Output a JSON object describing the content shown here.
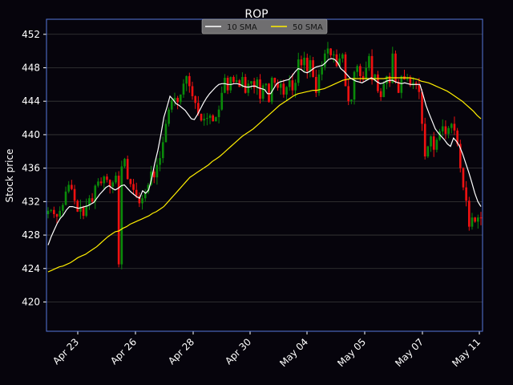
{
  "chart_data": {
    "type": "candlestick",
    "title": "ROP",
    "ylabel": "Stock price",
    "xlabel": "",
    "ylim": [
      416.5,
      453.8
    ],
    "y_ticks": [
      420,
      424,
      428,
      432,
      436,
      440,
      444,
      448,
      452
    ],
    "x_tick_labels": [
      "Apr 23",
      "Apr 26",
      "Apr 28",
      "Apr 30",
      "May 04",
      "May 05",
      "May 07",
      "May 11"
    ],
    "grid": true,
    "legend_position": "top-center",
    "colors": {
      "background": "#06040c",
      "axes_border": "#5577dd",
      "grid": "#3a3a3a",
      "up": "#0a8a0a",
      "down": "#ee1111",
      "sma10": "#ffffff",
      "sma50": "#ffee00",
      "legend_bg": "#8a8a8a"
    },
    "legend": [
      {
        "label": "10 SMA",
        "color": "#ffffff"
      },
      {
        "label": "50 SMA",
        "color": "#ffee00"
      }
    ],
    "close": [
      430.9,
      431.0,
      430.5,
      430.2,
      430.9,
      431.6,
      433.2,
      434.0,
      433.5,
      432.1,
      430.8,
      431.4,
      430.3,
      431.5,
      432.4,
      432.0,
      433.9,
      434.4,
      434.2,
      435.0,
      434.6,
      433.8,
      434.3,
      435.1,
      424.5,
      436.2,
      437.1,
      434.7,
      434.1,
      433.4,
      432.7,
      431.8,
      432.4,
      433.1,
      434.0,
      435.6,
      434.9,
      436.4,
      437.2,
      439.1,
      441.3,
      443.0,
      444.1,
      444.4,
      443.9,
      444.8,
      446.1,
      447.0,
      445.8,
      444.6,
      443.8,
      442.5,
      441.7,
      441.9,
      442.0,
      442.3,
      441.6,
      442.1,
      443.0,
      445.0,
      446.8,
      445.3,
      446.9,
      446.3,
      446.5,
      445.7,
      446.9,
      445.0,
      446.1,
      446.4,
      445.6,
      446.6,
      444.3,
      445.9,
      446.1,
      443.9,
      446.8,
      446.2,
      445.6,
      446.1,
      444.8,
      445.7,
      446.5,
      445.3,
      446.2,
      449.0,
      448.3,
      449.2,
      447.6,
      448.9,
      446.9,
      445.0,
      447.2,
      448.1,
      449.7,
      450.3,
      449.5,
      449.6,
      448.2,
      449.1,
      449.6,
      445.8,
      444.0,
      444.2,
      447.5,
      448.2,
      447.0,
      446.6,
      448.0,
      449.4,
      446.5,
      447.2,
      445.2,
      444.5,
      446.1,
      447.0,
      446.2,
      449.7,
      446.3,
      445.0,
      447.0,
      446.6,
      446.8,
      445.9,
      446.2,
      446.0,
      445.1,
      441.3,
      437.4,
      438.6,
      439.8,
      438.2,
      439.4,
      440.4,
      441.0,
      440.1,
      440.8,
      441.3,
      440.5,
      438.9,
      436.0,
      433.7,
      432.1,
      429.0,
      430.1,
      429.6,
      430.1,
      430.0
    ],
    "sma10": [
      426.8,
      427.8,
      428.6,
      429.4,
      430.0,
      430.4,
      431.0,
      431.4,
      431.4,
      431.3,
      431.2,
      431.3,
      431.4,
      431.5,
      431.7,
      431.9,
      432.4,
      432.9,
      433.3,
      433.7,
      433.9,
      433.6,
      433.4,
      433.6,
      433.9,
      434.0,
      433.6,
      433.2,
      432.9,
      432.6,
      432.4,
      433.3,
      433.0,
      433.4,
      434.8,
      436.6,
      438.1,
      440.0,
      442.1,
      443.3,
      444.6,
      444.2,
      443.7,
      443.5,
      443.2,
      442.9,
      442.4,
      441.9,
      441.8,
      442.4,
      443.1,
      443.8,
      444.4,
      444.9,
      445.3,
      445.7,
      446.0,
      446.1,
      446.1,
      446.0,
      446.0,
      446.1,
      446.1,
      446.0,
      445.8,
      445.7,
      445.7,
      445.8,
      445.8,
      445.6,
      445.5,
      445.4,
      444.9,
      444.9,
      445.5,
      446.1,
      446.3,
      446.4,
      446.5,
      446.6,
      447.0,
      447.5,
      447.9,
      447.8,
      447.5,
      447.4,
      447.6,
      447.9,
      448.1,
      448.2,
      448.3,
      448.6,
      449.0,
      449.1,
      449.0,
      448.6,
      447.9,
      447.6,
      447.2,
      446.8,
      446.6,
      446.4,
      446.3,
      446.2,
      446.4,
      446.6,
      446.8,
      446.6,
      446.3,
      446.1,
      446.2,
      446.4,
      446.5,
      446.5,
      446.3,
      446.2,
      446.1,
      446.2,
      446.1,
      446.0,
      446.0,
      446.0,
      446.0,
      444.8,
      443.5,
      442.5,
      441.6,
      440.7,
      440.2,
      439.8,
      439.4,
      438.9,
      438.6,
      439.6,
      439.2,
      438.6,
      437.7,
      436.6,
      435.5,
      434.3,
      433.0,
      432.0,
      431.4
    ],
    "sma50": [
      423.6,
      423.8,
      424.0,
      424.2,
      424.3,
      424.5,
      424.7,
      425.0,
      425.3,
      425.5,
      425.7,
      426.0,
      426.3,
      426.6,
      427.0,
      427.4,
      427.8,
      428.1,
      428.4,
      428.5,
      428.8,
      429.0,
      429.3,
      429.5,
      429.7,
      429.9,
      430.1,
      430.3,
      430.6,
      430.8,
      431.1,
      431.4,
      431.9,
      432.4,
      432.9,
      433.4,
      433.9,
      434.4,
      434.9,
      435.2,
      435.5,
      435.8,
      436.1,
      436.4,
      436.8,
      437.1,
      437.4,
      437.8,
      438.2,
      438.6,
      439.0,
      439.4,
      439.8,
      440.1,
      440.4,
      440.7,
      441.1,
      441.5,
      441.9,
      442.3,
      442.7,
      443.1,
      443.5,
      443.8,
      444.1,
      444.4,
      444.7,
      444.9,
      445.0,
      445.1,
      445.2,
      445.3,
      445.3,
      445.4,
      445.5,
      445.7,
      445.9,
      446.1,
      446.3,
      446.5,
      446.6,
      446.7,
      446.7,
      446.7,
      446.7,
      446.7,
      446.7,
      446.7,
      446.7,
      446.7,
      446.7,
      446.8,
      446.8,
      446.8,
      446.8,
      446.8,
      446.8,
      446.8,
      446.7,
      446.6,
      446.4,
      446.3,
      446.2,
      446.0,
      445.8,
      445.6,
      445.4,
      445.2,
      444.9,
      444.6,
      444.3,
      444.0,
      443.6,
      443.2,
      442.8,
      442.3,
      441.9
    ]
  }
}
